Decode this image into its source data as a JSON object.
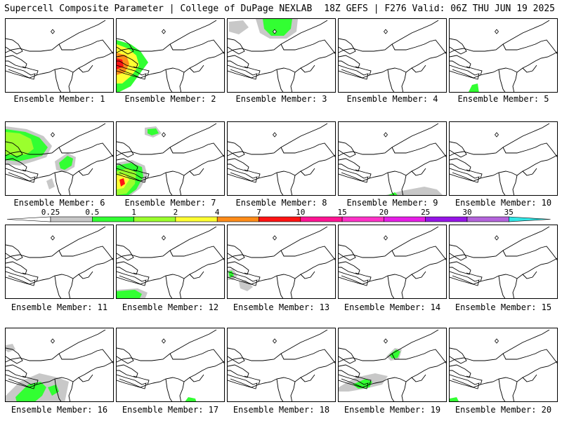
{
  "header": {
    "title": "Supercell Composite Parameter | College of DuPage NEXLAB",
    "run_info": "18Z GEFS | F276 Valid: 06Z THU JUN 19 2025"
  },
  "legend": {
    "ticks": [
      "0.25",
      "0.5",
      "1",
      "2",
      "4",
      "7",
      "10",
      "15",
      "20",
      "25",
      "30",
      "35"
    ],
    "colors": [
      "#c8c8c8",
      "#32ff32",
      "#9bff2d",
      "#ffff32",
      "#ff8c19",
      "#ff1414",
      "#ff1493",
      "#ff32c8",
      "#e61ee6",
      "#9614e6",
      "#b464dc",
      "#32e6e6"
    ],
    "zero_color": "#ffffff"
  },
  "panels": [
    {
      "label": "Ensemble Member: 1"
    },
    {
      "label": "Ensemble Member: 2"
    },
    {
      "label": "Ensemble Member: 3"
    },
    {
      "label": "Ensemble Member: 4"
    },
    {
      "label": "Ensemble Member: 5"
    },
    {
      "label": "Ensemble Member: 6"
    },
    {
      "label": "Ensemble Member: 7"
    },
    {
      "label": "Ensemble Member: 8"
    },
    {
      "label": "Ensemble Member: 9"
    },
    {
      "label": "Ensemble Member: 10"
    },
    {
      "label": "Ensemble Member: 11"
    },
    {
      "label": "Ensemble Member: 12"
    },
    {
      "label": "Ensemble Member: 13"
    },
    {
      "label": "Ensemble Member: 14"
    },
    {
      "label": "Ensemble Member: 15"
    },
    {
      "label": "Ensemble Member: 16"
    },
    {
      "label": "Ensemble Member: 17"
    },
    {
      "label": "Ensemble Member: 18"
    },
    {
      "label": "Ensemble Member: 19"
    },
    {
      "label": "Ensemble Member: 20"
    }
  ]
}
